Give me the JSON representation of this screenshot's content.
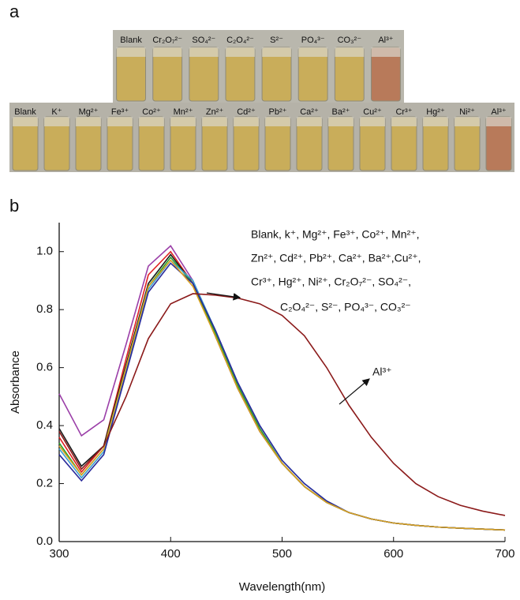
{
  "panel_a": {
    "label": "a",
    "top_row": [
      "Blank",
      "Cr₂O₇²⁻",
      "SO₄²⁻",
      "C₂O₄²⁻",
      "S²⁻",
      "PO₄³⁻",
      "CO₃²⁻",
      "Al³⁺"
    ],
    "bottom_row": [
      "Blank",
      "K⁺",
      "Mg²⁺",
      "Fe³⁺",
      "Co²⁺",
      "Mn²⁺",
      "Zn²⁺",
      "Cd²⁺",
      "Pb²⁺",
      "Ca²⁺",
      "Ba²⁺",
      "Cu²⁺",
      "Cr³⁺",
      "Hg²⁺",
      "Ni²⁺",
      "Al³⁺"
    ]
  },
  "chart_data": {
    "type": "line",
    "panel_label": "b",
    "x_label": "Wavelength(nm)",
    "y_label": "Absorbance",
    "x": [
      300,
      320,
      340,
      360,
      380,
      400,
      420,
      440,
      460,
      480,
      500,
      520,
      540,
      560,
      580,
      600,
      620,
      640,
      660,
      680,
      700
    ],
    "series": [
      {
        "color": "#9b3fa8",
        "values": [
          0.51,
          0.365,
          0.42,
          0.68,
          0.95,
          1.02,
          0.9,
          0.72,
          0.54,
          0.39,
          0.27,
          0.19,
          0.135,
          0.1,
          0.078,
          0.064,
          0.056,
          0.05,
          0.046,
          0.043,
          0.04
        ]
      },
      {
        "color": "#e02020",
        "values": [
          0.36,
          0.24,
          0.33,
          0.63,
          0.92,
          1.0,
          0.89,
          0.71,
          0.53,
          0.38,
          0.27,
          0.19,
          0.135,
          0.1,
          0.078,
          0.064,
          0.056,
          0.05,
          0.046,
          0.043,
          0.04
        ]
      },
      {
        "color": "#1a1a1a",
        "values": [
          0.39,
          0.26,
          0.33,
          0.61,
          0.89,
          0.99,
          0.89,
          0.71,
          0.53,
          0.38,
          0.27,
          0.19,
          0.135,
          0.1,
          0.078,
          0.064,
          0.056,
          0.05,
          0.046,
          0.043,
          0.04
        ]
      },
      {
        "color": "#2ca02c",
        "values": [
          0.34,
          0.23,
          0.32,
          0.6,
          0.88,
          0.98,
          0.89,
          0.72,
          0.54,
          0.39,
          0.27,
          0.19,
          0.135,
          0.1,
          0.078,
          0.064,
          0.056,
          0.05,
          0.046,
          0.043,
          0.04
        ]
      },
      {
        "color": "#3fa0d0",
        "values": [
          0.32,
          0.22,
          0.31,
          0.59,
          0.87,
          0.97,
          0.9,
          0.73,
          0.55,
          0.4,
          0.28,
          0.2,
          0.14,
          0.1,
          0.078,
          0.064,
          0.056,
          0.05,
          0.046,
          0.043,
          0.04
        ]
      },
      {
        "color": "#2a2a9a",
        "values": [
          0.3,
          0.21,
          0.3,
          0.58,
          0.86,
          0.96,
          0.89,
          0.73,
          0.55,
          0.4,
          0.28,
          0.2,
          0.14,
          0.1,
          0.078,
          0.064,
          0.056,
          0.05,
          0.046,
          0.043,
          0.04
        ]
      },
      {
        "color": "#d8a020",
        "values": [
          0.33,
          0.23,
          0.32,
          0.6,
          0.88,
          0.97,
          0.88,
          0.71,
          0.53,
          0.38,
          0.27,
          0.19,
          0.135,
          0.1,
          0.078,
          0.064,
          0.056,
          0.05,
          0.046,
          0.043,
          0.04
        ]
      },
      {
        "color": "#8b1a1a",
        "values": [
          0.38,
          0.25,
          0.33,
          0.5,
          0.7,
          0.82,
          0.855,
          0.85,
          0.84,
          0.82,
          0.78,
          0.71,
          0.6,
          0.47,
          0.36,
          0.27,
          0.2,
          0.155,
          0.125,
          0.105,
          0.09
        ]
      }
    ],
    "xlim": [
      300,
      700
    ],
    "xticks": [
      300,
      400,
      500,
      600,
      700
    ],
    "ylim": [
      0,
      1.1
    ],
    "yticks": [
      {
        "value": 0,
        "label": "0.0"
      },
      0.2,
      0.4,
      0.6,
      0.8,
      {
        "value": 1,
        "label": "1.0"
      }
    ],
    "annotations": [
      "Blank, k⁺, Mg²⁺, Fe³⁺, Co²⁺,  Mn²⁺,",
      "Zn²⁺, Cd²⁺, Pb²⁺, Ca²⁺, Ba²⁺,Cu²⁺,",
      "Cr³⁺, Hg²⁺, Ni²⁺, Cr₂O₇²⁻, SO₄²⁻,",
      "C₂O₄²⁻, S²⁻, PO₄³⁻, CO₃²⁻",
      "Al³⁺"
    ]
  }
}
